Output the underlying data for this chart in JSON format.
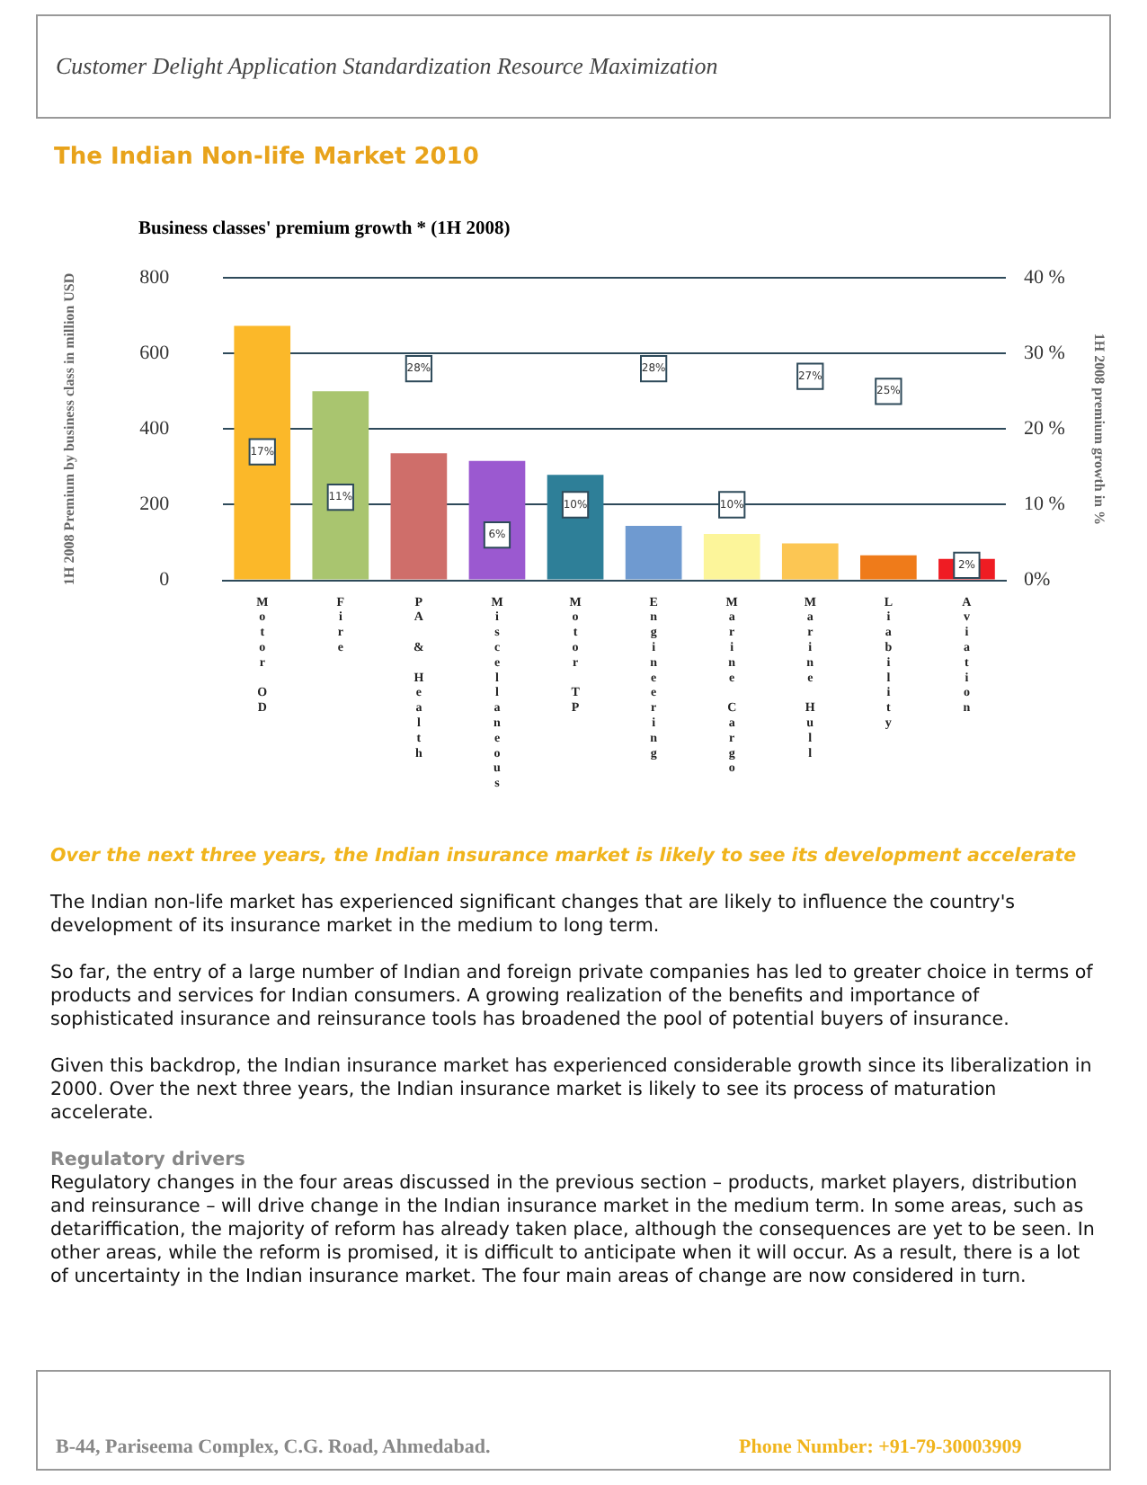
{
  "chart_data": {
    "type": "bar",
    "title": "The Indian Non-life Market 2010",
    "subtitle": "Business classes' premium growth * (1H 2008)",
    "ylabel": "1H 2008 Premium by business class in million USD",
    "y2label": "1H 2008 premium growth in %",
    "categories": [
      "Motor OD",
      "Fire",
      "PA & Health",
      "Miscellaneous",
      "Motor TP",
      "Engineering",
      "Marine Cargo",
      "Marine Hull",
      "Liability",
      "Aviation"
    ],
    "series": [
      {
        "colors": [
          "#fbb829",
          "#a9c56f",
          "#cf6e6a",
          "#9b59d0",
          "#2e7f98",
          "#6f9ad0",
          "#fcf59a",
          "#fcc653",
          "#ef7b1a",
          "#ef1c23"
        ],
        "values": [
          673,
          500,
          336,
          316,
          279,
          144,
          123,
          98,
          66,
          57
        ]
      },
      {
        "type": "scatter",
        "axis": "y2",
        "color": "#2e4a5a",
        "marker": "square",
        "values": [
          17,
          11,
          28,
          6,
          10,
          28,
          10,
          27,
          25,
          2
        ],
        "value_labels": [
          "17%",
          "11%",
          "28%",
          "6%",
          "10%",
          "28%",
          "10%",
          "27%",
          "25%",
          "2%"
        ]
      }
    ],
    "ylim": [
      0,
      800
    ],
    "yticks": [
      0,
      200,
      400,
      600,
      800
    ],
    "y2lim": [
      0,
      40
    ],
    "y2ticks": [
      {
        "value": 0,
        "label": "0%"
      },
      {
        "value": 10,
        "label": "10 %"
      },
      {
        "value": 20,
        "label": "20 %"
      },
      {
        "value": 30,
        "label": "30 %"
      },
      {
        "value": 40,
        "label": "40 %"
      }
    ],
    "grid": "y",
    "legend": false,
    "annotations": [
      "Customer Delight Application Standardization Resource Maximization",
      "Over the next three years, the Indian insurance market is likely to see its development accelerate",
      "The Indian non-life market has experienced significant changes that are likely to influence the country's development of its insurance market in the medium to long term.",
      "So far, the entry of a large number of Indian and foreign private companies has led to greater choice in terms of products and services for Indian consumers. A growing realization of the benefits and importance of sophisticated insurance and reinsurance tools has broadened the pool of potential buyers of insurance.",
      "Given this backdrop, the Indian insurance market has experienced considerable growth since its liberalization in 2000. Over the next three years, the Indian insurance market is likely to see its process of maturation accelerate.",
      "Regulatory drivers",
      "Regulatory changes in the four areas discussed in the previous section – products, market players, distribution and reinsurance – will drive change in the Indian insurance market in the medium term. In some areas, such as detariffication, the majority of reform has already taken place, although the consequences are yet to be seen. In other areas, while the reform is promised, it is difficult to anticipate when it will occur. As a result, there is a lot of uncertainty in the Indian insurance market. The four main areas of change are now considered in turn.",
      "B-44, Pariseema Complex, C.G. Road, Ahmedabad.",
      "Phone Number: +91-79-30003909"
    ]
  }
}
